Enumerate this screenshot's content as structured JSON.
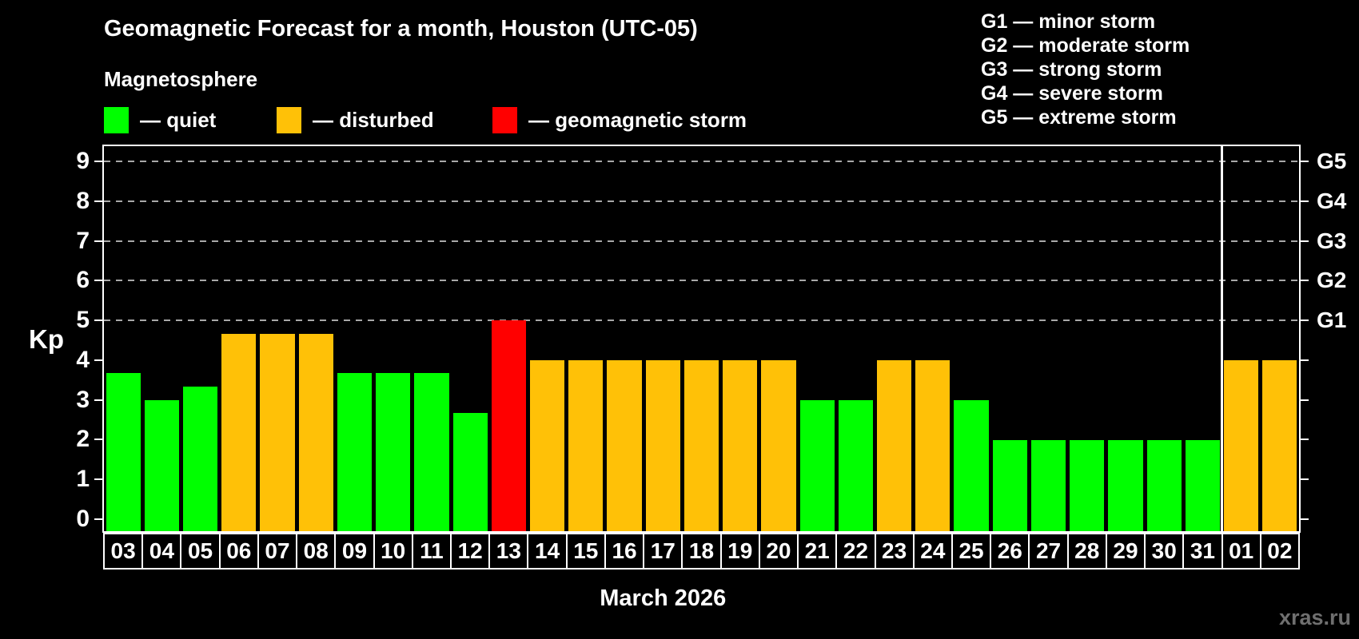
{
  "title": "Geomagnetic Forecast for a month, Houston (UTC-05)",
  "magnetosphere": {
    "title": "Magnetosphere",
    "items": [
      {
        "status": "quiet",
        "label": "— quiet",
        "color": "#00ff00"
      },
      {
        "status": "disturbed",
        "label": "— disturbed",
        "color": "#ffc107"
      },
      {
        "status": "storm",
        "label": "— geomagnetic storm",
        "color": "#ff0000"
      }
    ]
  },
  "storm_scale": [
    "G1 — minor storm",
    "G2 — moderate storm",
    "G3 — strong storm",
    "G4 — severe storm",
    "G5 — extreme storm"
  ],
  "watermark": "xras.ru",
  "chart_data": {
    "type": "bar",
    "title": "Geomagnetic Forecast for a month, Houston (UTC-05)",
    "xlabel": "March 2026",
    "ylabel": "Kp",
    "ylim": [
      0,
      9
    ],
    "y_ticks": [
      0,
      1,
      2,
      3,
      4,
      5,
      6,
      7,
      8,
      9
    ],
    "gridlines_at": [
      5,
      6,
      7,
      8,
      9
    ],
    "grid_style": "dashed",
    "legend_position": "top-left",
    "categories": [
      "03",
      "04",
      "05",
      "06",
      "07",
      "08",
      "09",
      "10",
      "11",
      "12",
      "13",
      "14",
      "15",
      "16",
      "17",
      "18",
      "19",
      "20",
      "21",
      "22",
      "23",
      "24",
      "25",
      "26",
      "27",
      "28",
      "29",
      "30",
      "31",
      "01",
      "02"
    ],
    "values": [
      3.67,
      3,
      3.33,
      4.67,
      4.67,
      4.67,
      3.67,
      3.67,
      3.67,
      2.67,
      5,
      4,
      4,
      4,
      4,
      4,
      4,
      4,
      3,
      3,
      4,
      4,
      3,
      2,
      2,
      2,
      2,
      2,
      2,
      4,
      4
    ],
    "statuses": [
      "quiet",
      "quiet",
      "quiet",
      "disturbed",
      "disturbed",
      "disturbed",
      "quiet",
      "quiet",
      "quiet",
      "quiet",
      "storm",
      "disturbed",
      "disturbed",
      "disturbed",
      "disturbed",
      "disturbed",
      "disturbed",
      "disturbed",
      "quiet",
      "quiet",
      "disturbed",
      "disturbed",
      "quiet",
      "quiet",
      "quiet",
      "quiet",
      "quiet",
      "quiet",
      "quiet",
      "disturbed",
      "disturbed"
    ],
    "color_map": {
      "quiet": "#00ff00",
      "disturbed": "#ffc107",
      "storm": "#ff0000"
    },
    "right_axis": [
      {
        "kp": 5,
        "label": "G1"
      },
      {
        "kp": 6,
        "label": "G2"
      },
      {
        "kp": 7,
        "label": "G3"
      },
      {
        "kp": 8,
        "label": "G4"
      },
      {
        "kp": 9,
        "label": "G5"
      }
    ],
    "month_separator_after_index": 28,
    "march_day_count": 29
  }
}
